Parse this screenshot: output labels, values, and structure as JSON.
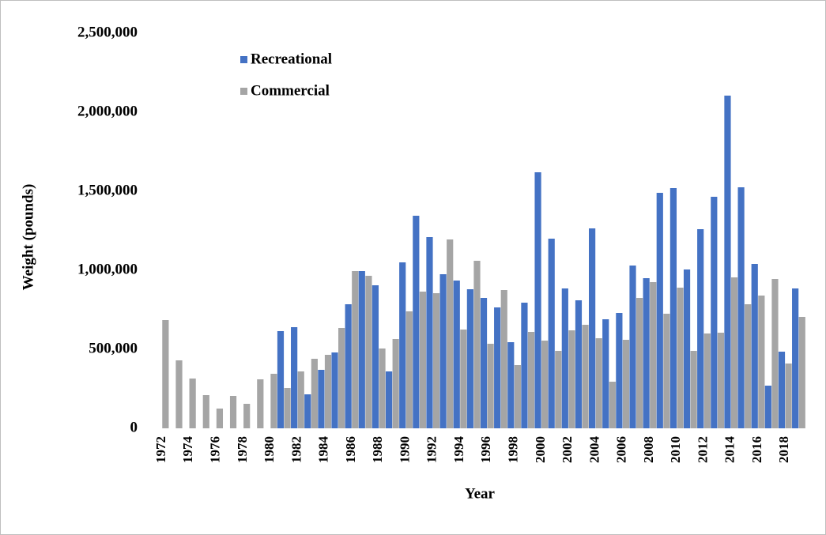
{
  "chart_data": {
    "type": "bar",
    "y_label": "Weight (pounds)",
    "x_label": "Year",
    "categories": [
      "1972",
      null,
      "1974",
      null,
      "1976",
      null,
      "1978",
      null,
      "1980",
      null,
      "1982",
      null,
      "1984",
      null,
      "1986",
      null,
      "1988",
      null,
      "1990",
      null,
      "1992",
      null,
      "1994",
      null,
      "1996",
      null,
      "1998",
      null,
      "2000",
      null,
      "2002",
      null,
      "2004",
      null,
      "2006",
      null,
      "2008",
      null,
      "2010",
      null,
      "2012",
      null,
      "2014",
      null,
      "2016",
      null,
      "2018",
      null
    ],
    "series": [
      {
        "name": "Recreational",
        "color": "#4472c4",
        "values": [
          null,
          null,
          null,
          null,
          null,
          null,
          null,
          null,
          null,
          615000,
          640000,
          215000,
          370000,
          480000,
          785000,
          995000,
          905000,
          360000,
          1050000,
          1345000,
          1210000,
          975000,
          935000,
          880000,
          825000,
          765000,
          545000,
          795000,
          1620000,
          1200000,
          885000,
          810000,
          1265000,
          690000,
          730000,
          1030000,
          950000,
          1490000,
          1520000,
          1005000,
          1260000,
          1465000,
          2105000,
          1525000,
          1040000,
          270000,
          485000,
          885000
        ]
      },
      {
        "name": "Commercial",
        "color": "#a5a5a5",
        "values": [
          685000,
          430000,
          315000,
          210000,
          125000,
          205000,
          155000,
          310000,
          345000,
          255000,
          360000,
          440000,
          465000,
          635000,
          995000,
          965000,
          505000,
          565000,
          740000,
          865000,
          855000,
          1195000,
          625000,
          1060000,
          535000,
          875000,
          400000,
          610000,
          555000,
          490000,
          620000,
          655000,
          570000,
          295000,
          560000,
          825000,
          925000,
          725000,
          890000,
          490000,
          600000,
          605000,
          955000,
          785000,
          840000,
          945000,
          410000,
          705000
        ]
      }
    ],
    "ylim": [
      0,
      2500000
    ],
    "yticks": [
      0,
      {
        "value": 500000,
        "label": "500,000"
      },
      {
        "value": 1000000,
        "label": "1,000,000"
      },
      {
        "value": 1500000,
        "label": "1,500,000"
      },
      {
        "value": 2000000,
        "label": "2,000,000"
      },
      {
        "value": 2500000,
        "label": "2,500,000"
      }
    ],
    "legend": "top-left"
  }
}
